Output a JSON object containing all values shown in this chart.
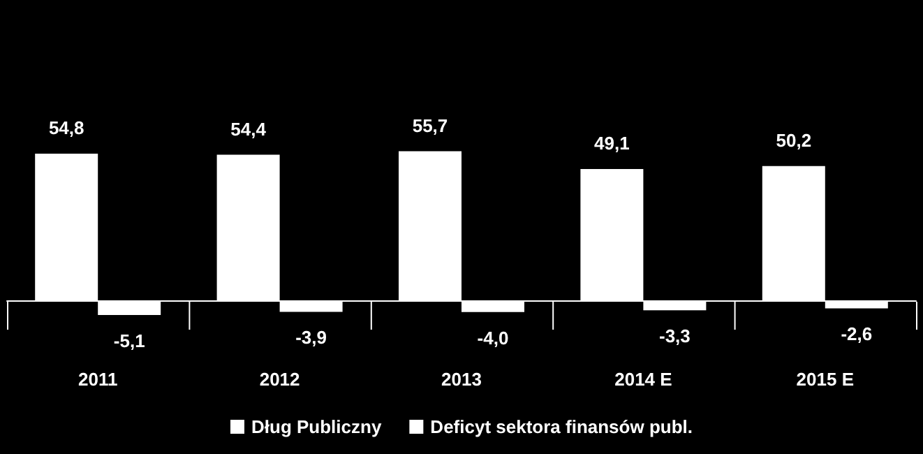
{
  "chart_data": {
    "type": "bar",
    "categories": [
      "2011",
      "2012",
      "2013",
      "2014 E",
      "2015 E"
    ],
    "series": [
      {
        "name": "Dług Publiczny",
        "color": "#ffffff",
        "values": [
          54.8,
          54.4,
          55.7,
          49.1,
          50.2
        ],
        "value_labels": [
          "54,8",
          "54,4",
          "55,7",
          "49,1",
          "50,2"
        ]
      },
      {
        "name": "Deficyt sektora finansów publ.",
        "color": "#ffffff",
        "values": [
          -5.1,
          -3.9,
          -4.0,
          -3.3,
          -2.6
        ],
        "value_labels": [
          "-5,1",
          "-3,9",
          "-4,0",
          "-3,3",
          "-2,6"
        ]
      }
    ],
    "legend": "bottom"
  }
}
